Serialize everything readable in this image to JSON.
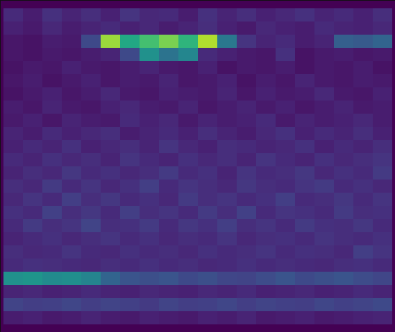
{
  "chart_data": {
    "type": "heatmap",
    "color": "viridis",
    "zlim": [
      0,
      1
    ],
    "tick_labels": false,
    "cells": [
      [
        0.12,
        0.08,
        0.14,
        0.1,
        0.13,
        0.09,
        0.15,
        0.11,
        0.12,
        0.08,
        0.14,
        0.1,
        0.13,
        0.09,
        0.11,
        0.14,
        0.1,
        0.12,
        0.09,
        0.13
      ],
      [
        0.09,
        0.07,
        0.11,
        0.08,
        0.1,
        0.12,
        0.09,
        0.11,
        0.08,
        0.1,
        0.13,
        0.09,
        0.07,
        0.11,
        0.09,
        0.08,
        0.12,
        0.1,
        0.09,
        0.11
      ],
      [
        0.06,
        0.05,
        0.08,
        0.07,
        0.22,
        0.85,
        0.6,
        0.7,
        0.8,
        0.65,
        0.88,
        0.4,
        0.15,
        0.1,
        0.12,
        0.08,
        0.1,
        0.3,
        0.28,
        0.32
      ],
      [
        0.06,
        0.05,
        0.07,
        0.06,
        0.08,
        0.1,
        0.22,
        0.5,
        0.38,
        0.46,
        0.12,
        0.09,
        0.07,
        0.06,
        0.14,
        0.05,
        0.07,
        0.08,
        0.06,
        0.07
      ],
      [
        0.05,
        0.07,
        0.06,
        0.09,
        0.07,
        0.06,
        0.08,
        0.1,
        0.07,
        0.06,
        0.09,
        0.05,
        0.07,
        0.06,
        0.08,
        0.05,
        0.07,
        0.06,
        0.08,
        0.05
      ],
      [
        0.06,
        0.08,
        0.05,
        0.07,
        0.09,
        0.06,
        0.08,
        0.07,
        0.1,
        0.06,
        0.07,
        0.09,
        0.05,
        0.08,
        0.06,
        0.1,
        0.07,
        0.06,
        0.08,
        0.07
      ],
      [
        0.05,
        0.07,
        0.09,
        0.06,
        0.08,
        0.11,
        0.07,
        0.06,
        0.09,
        0.08,
        0.07,
        0.1,
        0.06,
        0.09,
        0.07,
        0.08,
        0.11,
        0.07,
        0.06,
        0.09
      ],
      [
        0.08,
        0.06,
        0.1,
        0.07,
        0.06,
        0.09,
        0.11,
        0.08,
        0.07,
        0.1,
        0.06,
        0.08,
        0.1,
        0.07,
        0.09,
        0.06,
        0.08,
        0.1,
        0.07,
        0.08
      ],
      [
        0.07,
        0.09,
        0.06,
        0.1,
        0.08,
        0.07,
        0.12,
        0.09,
        0.11,
        0.07,
        0.1,
        0.08,
        0.09,
        0.12,
        0.07,
        0.1,
        0.08,
        0.09,
        0.11,
        0.08
      ],
      [
        0.1,
        0.08,
        0.12,
        0.09,
        0.11,
        0.13,
        0.08,
        0.1,
        0.12,
        0.09,
        0.13,
        0.1,
        0.08,
        0.11,
        0.14,
        0.09,
        0.12,
        0.1,
        0.13,
        0.09
      ],
      [
        0.09,
        0.12,
        0.1,
        0.14,
        0.09,
        0.11,
        0.13,
        0.1,
        0.15,
        0.11,
        0.09,
        0.13,
        0.12,
        0.1,
        0.11,
        0.14,
        0.09,
        0.12,
        0.1,
        0.13
      ],
      [
        0.12,
        0.1,
        0.14,
        0.11,
        0.13,
        0.1,
        0.15,
        0.12,
        0.1,
        0.14,
        0.11,
        0.13,
        0.1,
        0.15,
        0.12,
        0.1,
        0.14,
        0.11,
        0.13,
        0.15
      ],
      [
        0.1,
        0.13,
        0.11,
        0.16,
        0.12,
        0.14,
        0.11,
        0.13,
        0.17,
        0.12,
        0.14,
        0.1,
        0.15,
        0.12,
        0.13,
        0.16,
        0.11,
        0.14,
        0.12,
        0.17
      ],
      [
        0.13,
        0.11,
        0.17,
        0.12,
        0.15,
        0.11,
        0.14,
        0.18,
        0.12,
        0.15,
        0.13,
        0.11,
        0.16,
        0.13,
        0.12,
        0.15,
        0.17,
        0.12,
        0.14,
        0.11
      ],
      [
        0.11,
        0.15,
        0.12,
        0.18,
        0.13,
        0.16,
        0.12,
        0.14,
        0.11,
        0.17,
        0.13,
        0.15,
        0.12,
        0.14,
        0.18,
        0.12,
        0.13,
        0.16,
        0.12,
        0.15
      ],
      [
        0.14,
        0.12,
        0.19,
        0.13,
        0.16,
        0.12,
        0.18,
        0.13,
        0.15,
        0.12,
        0.17,
        0.13,
        0.19,
        0.12,
        0.15,
        0.14,
        0.12,
        0.17,
        0.13,
        0.14
      ],
      [
        0.12,
        0.17,
        0.13,
        0.15,
        0.2,
        0.13,
        0.14,
        0.17,
        0.12,
        0.16,
        0.14,
        0.18,
        0.13,
        0.15,
        0.12,
        0.17,
        0.14,
        0.13,
        0.16,
        0.12
      ],
      [
        0.1,
        0.12,
        0.14,
        0.11,
        0.13,
        0.15,
        0.12,
        0.14,
        0.11,
        0.13,
        0.12,
        0.15,
        0.11,
        0.13,
        0.14,
        0.12,
        0.15,
        0.13,
        0.12,
        0.14
      ],
      [
        0.13,
        0.11,
        0.12,
        0.15,
        0.12,
        0.11,
        0.14,
        0.12,
        0.13,
        0.11,
        0.14,
        0.12,
        0.13,
        0.15,
        0.12,
        0.14,
        0.13,
        0.11,
        0.18,
        0.15
      ],
      [
        0.12,
        0.14,
        0.13,
        0.12,
        0.11,
        0.13,
        0.12,
        0.14,
        0.12,
        0.13,
        0.11,
        0.12,
        0.14,
        0.12,
        0.13,
        0.12,
        0.11,
        0.13,
        0.14,
        0.12
      ],
      [
        0.5,
        0.52,
        0.48,
        0.49,
        0.45,
        0.32,
        0.26,
        0.24,
        0.26,
        0.22,
        0.24,
        0.21,
        0.2,
        0.23,
        0.26,
        0.22,
        0.24,
        0.26,
        0.23,
        0.21
      ],
      [
        0.1,
        0.11,
        0.09,
        0.1,
        0.12,
        0.1,
        0.09,
        0.11,
        0.1,
        0.09,
        0.11,
        0.1,
        0.12,
        0.09,
        0.1,
        0.11,
        0.09,
        0.1,
        0.12,
        0.1
      ],
      [
        0.2,
        0.18,
        0.19,
        0.21,
        0.18,
        0.2,
        0.19,
        0.17,
        0.2,
        0.18,
        0.19,
        0.21,
        0.18,
        0.2,
        0.19,
        0.18,
        0.21,
        0.19,
        0.2,
        0.22
      ],
      [
        0.08,
        0.09,
        0.07,
        0.08,
        0.1,
        0.08,
        0.07,
        0.09,
        0.08,
        0.07,
        0.09,
        0.08,
        0.1,
        0.07,
        0.08,
        0.09,
        0.07,
        0.08,
        0.09,
        0.1
      ]
    ]
  }
}
